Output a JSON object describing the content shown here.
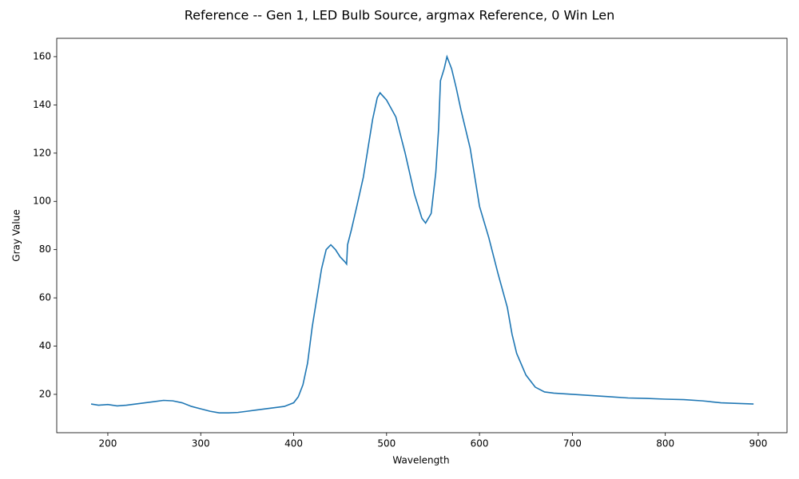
{
  "chart_data": {
    "type": "line",
    "title": "Reference -- Gen 1, LED Bulb Source, argmax Reference, 0 Win Len",
    "xlabel": "Wavelength",
    "ylabel": "Gray Value",
    "color": "#1f77b4",
    "x": [
      182,
      190,
      200,
      210,
      220,
      230,
      240,
      250,
      260,
      270,
      280,
      290,
      300,
      310,
      320,
      330,
      340,
      350,
      360,
      370,
      380,
      390,
      400,
      405,
      410,
      415,
      420,
      425,
      430,
      435,
      440,
      445,
      450,
      455,
      457,
      458,
      462,
      468,
      475,
      480,
      485,
      490,
      493,
      500,
      510,
      520,
      530,
      538,
      542,
      548,
      553,
      556,
      558,
      562,
      565,
      570,
      575,
      580,
      590,
      600,
      610,
      620,
      630,
      635,
      640,
      650,
      660,
      670,
      680,
      700,
      720,
      740,
      760,
      780,
      800,
      820,
      840,
      860,
      880,
      895
    ],
    "values": [
      16,
      15.5,
      15.8,
      15.2,
      15.5,
      16,
      16.5,
      17,
      17.5,
      17.3,
      16.5,
      15,
      14,
      13,
      12.3,
      12.3,
      12.5,
      13,
      13.5,
      14,
      14.5,
      15,
      16.5,
      19,
      24,
      33,
      48,
      60,
      72,
      80,
      82,
      80,
      77,
      75,
      74,
      82,
      88,
      98,
      110,
      122,
      134,
      143,
      145,
      142,
      135,
      120,
      103,
      93,
      91,
      95,
      112,
      130,
      150,
      155,
      160,
      155,
      147,
      138,
      122,
      98,
      85,
      70,
      56,
      45,
      37,
      28,
      23,
      21,
      20.5,
      20,
      19.5,
      19,
      18.5,
      18.3,
      18,
      17.8,
      17.3,
      16.5,
      16.2,
      16
    ],
    "xlim": [
      145,
      931
    ],
    "ylim": [
      4.1,
      167.6
    ],
    "xticks": [
      200,
      300,
      400,
      500,
      600,
      700,
      800,
      900
    ],
    "yticks": [
      20,
      40,
      60,
      80,
      100,
      120,
      140,
      160
    ]
  }
}
